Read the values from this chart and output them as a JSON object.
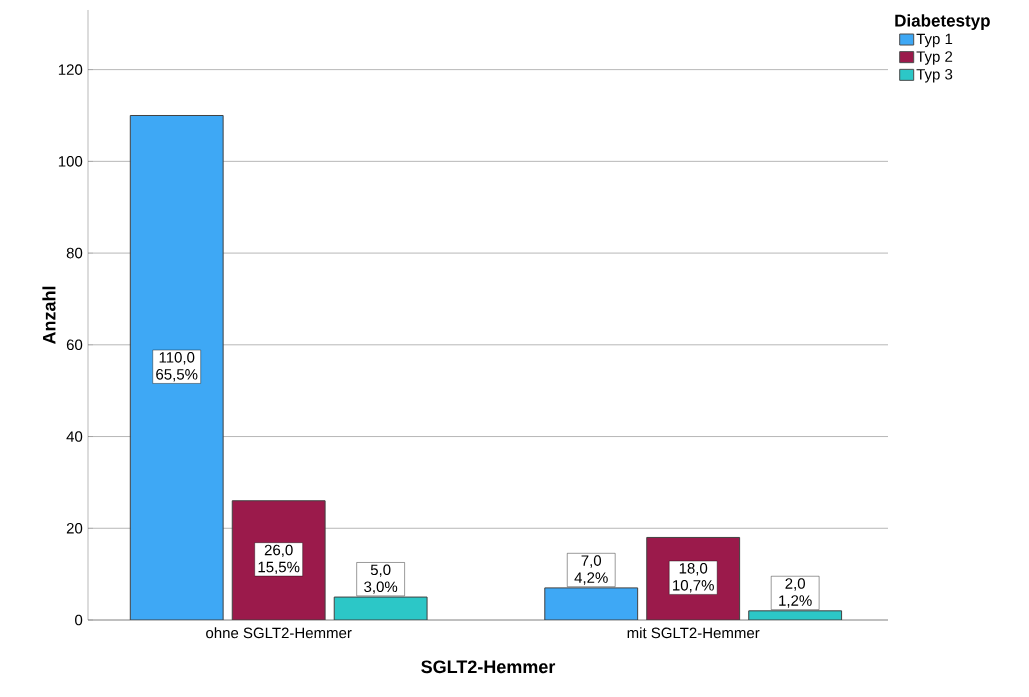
{
  "chart_data": {
    "type": "bar",
    "xlabel": "SGLT2-Hemmer",
    "ylabel": "Anzahl",
    "legend_title": "Diabetestyp",
    "categories": [
      "ohne SGLT2-Hemmer",
      "mit SGLT2-Hemmer"
    ],
    "series": [
      {
        "name": "Typ 1",
        "color": "#3ea8f5",
        "values": [
          110,
          7
        ],
        "value_labels": [
          "110,0\n65,5%",
          "7,0\n4,2%"
        ]
      },
      {
        "name": "Typ 2",
        "color": "#9b1a4b",
        "values": [
          26,
          18
        ],
        "value_labels": [
          "26,0\n15,5%",
          "18,0\n10,7%"
        ]
      },
      {
        "name": "Typ 3",
        "color": "#2cc7c7",
        "values": [
          5,
          2
        ],
        "value_labels": [
          "5,0\n3,0%",
          "2,0\n1,2%"
        ]
      }
    ],
    "ylim": [
      0,
      133
    ],
    "yticks": [
      0,
      20,
      40,
      60,
      80,
      100,
      120
    ],
    "grid": "y",
    "legend": "top right"
  }
}
